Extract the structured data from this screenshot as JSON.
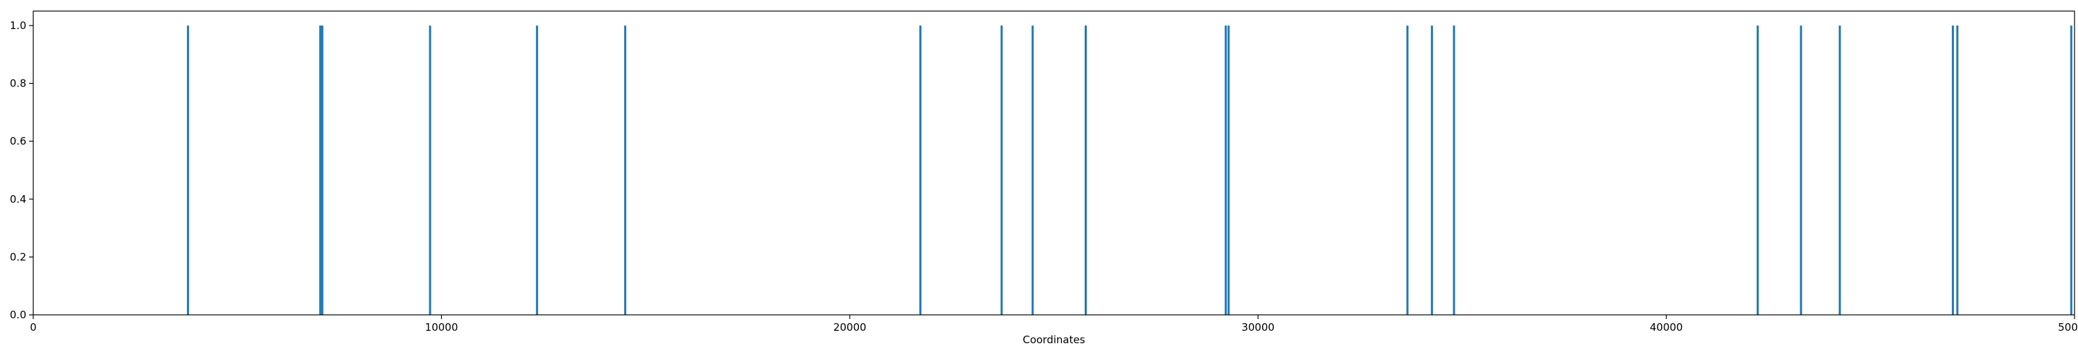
{
  "chart_data": {
    "type": "bar",
    "xlabel": "Coordinates",
    "ylabel": "",
    "xlim": [
      0,
      50000
    ],
    "ylim": [
      0,
      1.05
    ],
    "grid": false,
    "bar_color": "#1f77b4",
    "x_ticks": [
      0,
      10000,
      20000,
      30000,
      40000,
      50000
    ],
    "x_tick_labels": [
      "0",
      "10000",
      "20000",
      "30000",
      "40000",
      "50000"
    ],
    "y_ticks": [
      0.0,
      0.2,
      0.4,
      0.6,
      0.8,
      1.0
    ],
    "y_tick_labels": [
      "0.0",
      "0.2",
      "0.4",
      "0.6",
      "0.8",
      "1.0"
    ],
    "x": [
      3790,
      7030,
      7080,
      9720,
      12340,
      14500,
      21730,
      23720,
      24480,
      25780,
      29210,
      29280,
      33660,
      34260,
      34800,
      42240,
      43300,
      44250,
      47020,
      47130,
      49920
    ],
    "values": [
      1,
      1,
      1,
      1,
      1,
      1,
      1,
      1,
      1,
      1,
      1,
      1,
      1,
      1,
      1,
      1,
      1,
      1,
      1,
      1,
      1
    ]
  }
}
